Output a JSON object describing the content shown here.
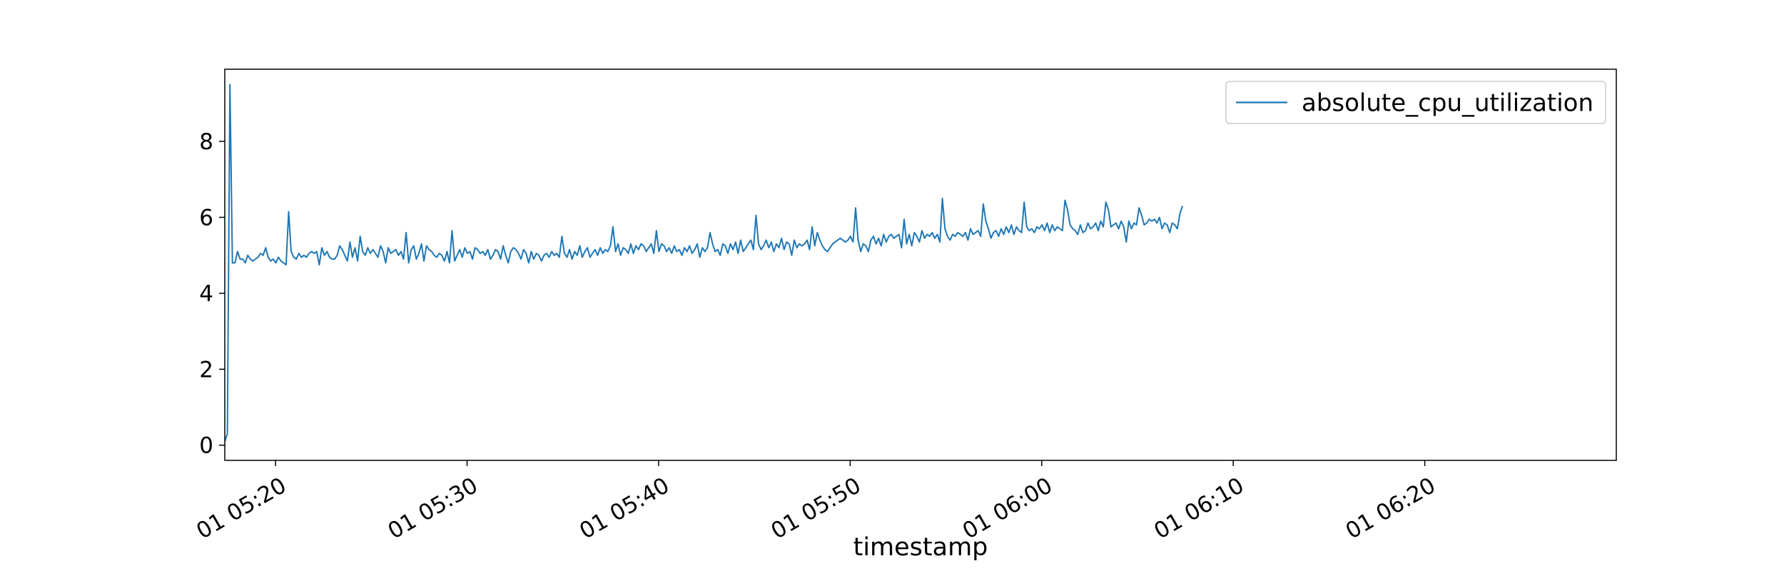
{
  "chart_data": {
    "type": "line",
    "title": "",
    "xlabel": "timestamp",
    "ylabel": "",
    "x_range": [
      "05:17:21",
      "06:30:00"
    ],
    "x_ticks": [
      {
        "time": "05:20",
        "label": "01 05:20"
      },
      {
        "time": "05:30",
        "label": "01 05:30"
      },
      {
        "time": "05:40",
        "label": "01 05:40"
      },
      {
        "time": "05:50",
        "label": "01 05:50"
      },
      {
        "time": "06:00",
        "label": "01 06:00"
      },
      {
        "time": "06:10",
        "label": "01 06:10"
      },
      {
        "time": "06:20",
        "label": "01 06:20"
      }
    ],
    "y_ticks": [
      {
        "value": 0,
        "label": "0"
      },
      {
        "value": 2,
        "label": "2"
      },
      {
        "value": 4,
        "label": "4"
      },
      {
        "value": 6,
        "label": "6"
      },
      {
        "value": 8,
        "label": "8"
      }
    ],
    "ylim": [
      -0.4,
      9.9
    ],
    "grid": false,
    "legend_position": "top-right",
    "series": [
      {
        "name": "absolute_cpu_utilization",
        "color": "#1f77b4",
        "interval_seconds": 8,
        "start_time": "05:17:21",
        "values": [
          0.1,
          0.3,
          9.5,
          4.8,
          4.8,
          5.1,
          4.9,
          4.9,
          4.8,
          5.0,
          4.9,
          4.85,
          4.9,
          4.95,
          5.05,
          5.0,
          5.2,
          4.95,
          4.85,
          4.9,
          4.8,
          4.95,
          4.85,
          4.8,
          4.75,
          6.15,
          5.1,
          4.95,
          4.9,
          5.05,
          4.95,
          5.0,
          4.95,
          5.05,
          5.1,
          5.05,
          5.1,
          4.75,
          5.2,
          5.0,
          5.1,
          4.95,
          4.9,
          4.9,
          5.0,
          5.25,
          5.15,
          5.0,
          4.85,
          5.35,
          4.95,
          5.2,
          4.85,
          5.5,
          5.1,
          5.0,
          5.2,
          5.05,
          5.15,
          5.05,
          4.95,
          5.25,
          5.1,
          4.8,
          5.2,
          5.05,
          5.1,
          5.15,
          5.0,
          5.1,
          4.9,
          5.6,
          4.8,
          5.15,
          5.25,
          4.9,
          5.05,
          5.3,
          4.85,
          5.25,
          5.15,
          5.1,
          5.0,
          4.95,
          5.05,
          5.0,
          4.85,
          5.1,
          4.8,
          5.65,
          4.85,
          5.0,
          5.15,
          4.95,
          5.2,
          5.05,
          5.1,
          4.9,
          5.2,
          5.15,
          5.05,
          5.1,
          5.0,
          5.15,
          4.9,
          5.0,
          5.15,
          5.1,
          4.9,
          5.25,
          5.0,
          4.8,
          5.1,
          5.2,
          5.15,
          5.05,
          4.9,
          5.15,
          5.05,
          4.8,
          5.1,
          4.9,
          5.05,
          5.0,
          4.85,
          5.0,
          5.05,
          4.95,
          5.1,
          5.0,
          5.05,
          4.95,
          5.5,
          5.05,
          4.95,
          5.15,
          4.9,
          5.1,
          5.0,
          5.25,
          4.95,
          5.1,
          5.2,
          4.95,
          5.05,
          5.15,
          5.0,
          5.2,
          5.05,
          5.15,
          5.1,
          5.25,
          5.75,
          5.1,
          5.3,
          5.0,
          5.2,
          5.15,
          5.05,
          5.3,
          5.05,
          5.25,
          5.15,
          5.3,
          5.25,
          5.1,
          5.2,
          5.3,
          5.05,
          5.65,
          5.1,
          5.3,
          5.25,
          5.1,
          5.2,
          5.05,
          5.25,
          5.1,
          5.15,
          5.0,
          5.2,
          5.1,
          5.25,
          5.05,
          5.15,
          5.3,
          4.95,
          5.2,
          5.1,
          5.2,
          5.6,
          5.3,
          5.1,
          5.15,
          5.0,
          5.3,
          5.25,
          5.05,
          5.3,
          5.15,
          5.35,
          5.05,
          5.4,
          5.1,
          5.2,
          5.3,
          5.4,
          5.15,
          6.05,
          5.3,
          5.15,
          5.25,
          5.4,
          5.2,
          5.35,
          5.1,
          5.3,
          5.2,
          5.45,
          5.15,
          5.35,
          5.3,
          5.0,
          5.4,
          5.2,
          5.3,
          5.25,
          5.3,
          5.4,
          5.15,
          5.75,
          5.25,
          5.6,
          5.4,
          5.25,
          5.15,
          5.1,
          5.2,
          5.3,
          5.35,
          5.4,
          5.45,
          5.4,
          5.35,
          5.4,
          5.5,
          5.35,
          6.25,
          5.4,
          5.1,
          5.3,
          5.25,
          5.1,
          5.4,
          5.5,
          5.3,
          5.45,
          5.25,
          5.55,
          5.35,
          5.5,
          5.55,
          5.45,
          5.5,
          5.55,
          5.2,
          5.95,
          5.3,
          5.55,
          5.25,
          5.6,
          5.5,
          5.35,
          5.65,
          5.45,
          5.55,
          5.5,
          5.6,
          5.45,
          5.55,
          5.35,
          6.5,
          5.7,
          5.5,
          5.4,
          5.55,
          5.5,
          5.6,
          5.55,
          5.5,
          5.6,
          5.4,
          5.7,
          5.55,
          5.6,
          5.65,
          5.5,
          6.35,
          5.9,
          5.7,
          5.45,
          5.6,
          5.65,
          5.5,
          5.7,
          5.55,
          5.75,
          5.6,
          5.8,
          5.55,
          5.75,
          5.65,
          5.6,
          6.4,
          5.75,
          5.65,
          5.7,
          5.6,
          5.75,
          5.7,
          5.8,
          5.65,
          5.85,
          5.6,
          5.8,
          5.65,
          5.75,
          5.7,
          5.65,
          6.45,
          6.2,
          5.8,
          5.7,
          5.65,
          5.55,
          5.8,
          5.6,
          5.65,
          5.85,
          5.7,
          5.75,
          5.85,
          5.65,
          5.9,
          5.75,
          6.4,
          6.2,
          5.75,
          5.8,
          5.85,
          5.7,
          5.9,
          5.75,
          5.35,
          5.9,
          5.7,
          5.85,
          5.8,
          6.25,
          6.05,
          5.8,
          5.85,
          5.95,
          5.9,
          5.95,
          5.85,
          6.0,
          5.7,
          5.85,
          5.8,
          5.6,
          5.85,
          5.8,
          5.7,
          6.1,
          6.3
        ]
      }
    ]
  }
}
